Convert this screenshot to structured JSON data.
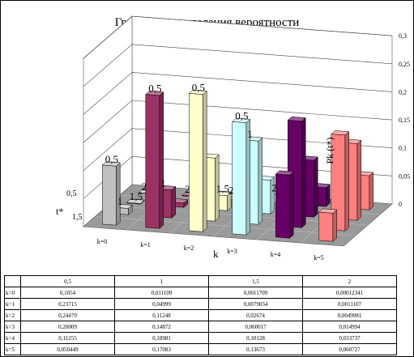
{
  "chart_data": {
    "type": "bar3d",
    "title": "График  распределения вероятности",
    "xlabel": "k",
    "ylabel": "t*",
    "zlabel": "Pk (t*)",
    "categories": [
      "k=0",
      "k=1",
      "k=2",
      "k=3",
      "k=4",
      "k=5"
    ],
    "depth_categories": [
      "0,5",
      "1",
      "1,5",
      "2"
    ],
    "zlim": [
      0,
      0.3
    ],
    "z_ticks": [
      "0",
      "0,05",
      "0,1",
      "0,15",
      "0,2",
      "0,25",
      "0,3"
    ],
    "depth_axis_ticks": [
      "0,5",
      "1,5"
    ],
    "series": [
      {
        "name": "0,5",
        "values": [
          0.1054,
          0.23715,
          0.24479,
          0.20009,
          0.11255,
          0.050449
        ]
      },
      {
        "name": "1",
        "values": [
          0.011109,
          0.04999,
          0.11248,
          0.14872,
          0.18981,
          0.17083
        ]
      },
      {
        "name": "1,5",
        "values": [
          0.0011709,
          0.0079034,
          0.02674,
          0.060017,
          0.10128,
          0.13673
        ]
      },
      {
        "name": "2",
        "values": [
          0.00012341,
          0.0011107,
          0.0049981,
          0.014994,
          0.033737,
          0.060727
        ]
      }
    ],
    "bar_labels": [
      {
        "text": "0,5",
        "k": 0,
        "s": 0
      },
      {
        "text": "0,5",
        "k": 1,
        "s": 0
      },
      {
        "text": "0,5",
        "k": 2,
        "s": 0
      },
      {
        "text": "0,5",
        "k": 3,
        "s": 0
      },
      {
        "text": "1",
        "k": 0,
        "s": 1
      },
      {
        "text": "1",
        "k": 1,
        "s": 1
      },
      {
        "text": "1",
        "k": 3,
        "s": 1
      },
      {
        "text": "1,5",
        "k": 0,
        "s": 2
      },
      {
        "text": "1,5",
        "k": 2,
        "s": 2
      },
      {
        "text": "2",
        "k": 0,
        "s": 3
      },
      {
        "text": "2",
        "k": 1,
        "s": 3
      },
      {
        "text": "2",
        "k": 2,
        "s": 3
      },
      {
        "text": "2",
        "k": 3,
        "s": 3
      }
    ],
    "colors": [
      "#c0c0c0",
      "#993366",
      "#ffffcc",
      "#ccffff",
      "#660066",
      "#ff8080"
    ],
    "grid": true
  },
  "table": {
    "columns": [
      "0,5",
      "1",
      "1,5",
      "2"
    ],
    "rows": [
      {
        "label": "k=0",
        "cells": [
          "0,1054",
          "0,011109",
          "0,0011709",
          "0,00012341"
        ]
      },
      {
        "label": "k=1",
        "cells": [
          "0,23715",
          "0,04999",
          "0,0079034",
          "0,0011107"
        ]
      },
      {
        "label": "k=2",
        "cells": [
          "0,24479",
          "0,11248",
          "0,02674",
          "0,0049981"
        ]
      },
      {
        "label": "k=3",
        "cells": [
          "0,20009",
          "0,14872",
          "0,060017",
          "0,014994"
        ]
      },
      {
        "label": "k=4",
        "cells": [
          "0,11255",
          "0,18981",
          "0,10128",
          "0,033737"
        ]
      },
      {
        "label": "k=5",
        "cells": [
          "0,050449",
          "0,17083",
          "0,13673",
          "0,060727"
        ]
      }
    ]
  }
}
